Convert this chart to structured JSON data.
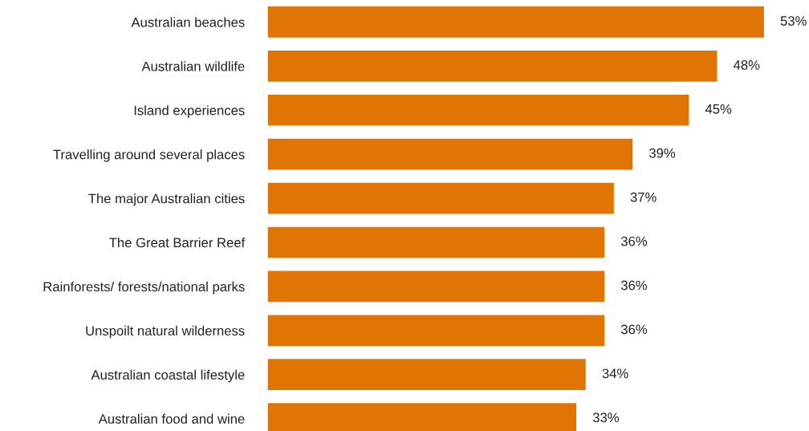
{
  "chart_data": {
    "type": "bar",
    "orientation": "horizontal",
    "categories": [
      "Australian beaches",
      "Australian wildlife",
      "Island experiences",
      "Travelling around several places",
      "The major Australian cities",
      "The Great Barrier Reef",
      "Rainforests/ forests/national parks",
      "Unspoilt natural wilderness",
      "Australian coastal lifestyle",
      "Australian food and wine"
    ],
    "values": [
      53,
      48,
      45,
      39,
      37,
      36,
      36,
      36,
      34,
      33
    ],
    "value_labels": [
      "53%",
      "48%",
      "45%",
      "39%",
      "37%",
      "36%",
      "36%",
      "36%",
      "34%",
      "33%"
    ],
    "color": "#e07506"
  }
}
